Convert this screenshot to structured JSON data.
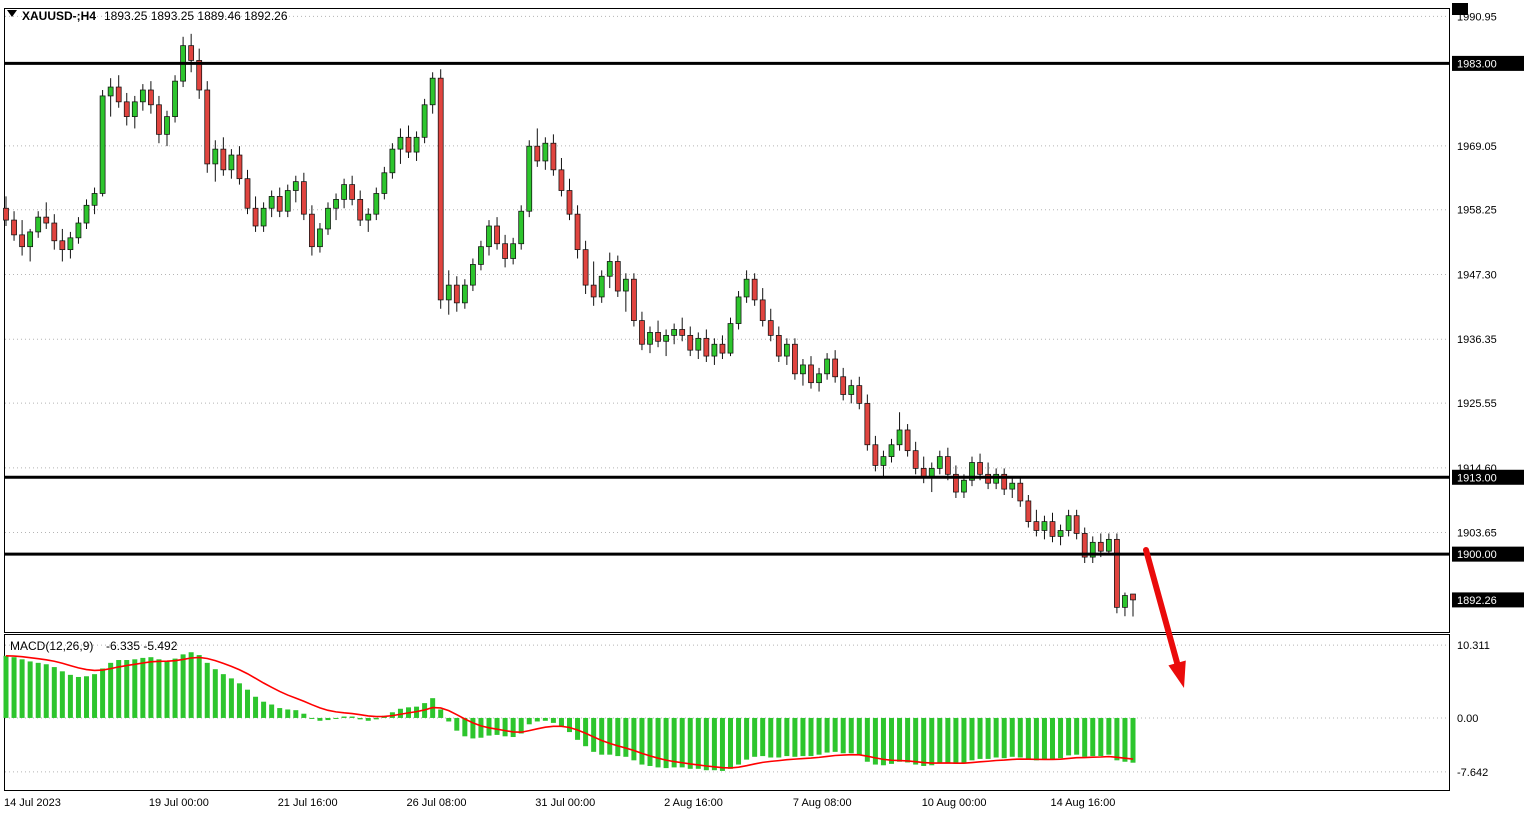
{
  "header": {
    "symbol": "XAUUSD-;H4",
    "ohlc": "1893.25 1893.25 1889.46 1892.26"
  },
  "indicator": {
    "name": "MACD(12,26,9)",
    "values": "-6.335 -5.492"
  },
  "colors": {
    "background": "#ffffff",
    "up": "#2dc52d",
    "down": "#e0443f",
    "wick": "#111111",
    "grid": "#b5b5b5",
    "level_line": "#000000",
    "badge_bg": "#000000",
    "badge_text": "#ffffff",
    "histogram": "#2dc52d",
    "signal": "#ff0000",
    "arrow": "#ea0b0b",
    "text": "#000000"
  },
  "chart_data": {
    "type": "candlestick",
    "symbol": "XAUUSD-",
    "timeframe": "H4",
    "title": "XAUUSD-;H4 1893.25 1893.25 1889.46 1892.26",
    "ylim": [
      1887.0,
      1992.2
    ],
    "price_ticks": [
      {
        "value": 1990.95,
        "label": "1990.95"
      },
      {
        "value": 1969.05,
        "label": "1969.05"
      },
      {
        "value": 1958.25,
        "label": "1958.25"
      },
      {
        "value": 1947.3,
        "label": "1947.30"
      },
      {
        "value": 1936.35,
        "label": "1936.35"
      },
      {
        "value": 1925.55,
        "label": "1925.55"
      },
      {
        "value": 1914.6,
        "label": "1914.60"
      },
      {
        "value": 1903.65,
        "label": "1903.65"
      }
    ],
    "levels": [
      {
        "price": 1983.0,
        "label": "1983.00"
      },
      {
        "price": 1913.0,
        "label": "1913.00"
      },
      {
        "price": 1900.0,
        "label": "1900.00"
      }
    ],
    "current_price": {
      "value": 1892.26,
      "label": "1892.26"
    },
    "date_ticks": [
      {
        "bar": 0,
        "label": "14 Jul 2023"
      },
      {
        "bar": 18,
        "label": "19 Jul 00:00"
      },
      {
        "bar": 34,
        "label": "21 Jul 16:00"
      },
      {
        "bar": 50,
        "label": "26 Jul 08:00"
      },
      {
        "bar": 66,
        "label": "31 Jul 00:00"
      },
      {
        "bar": 82,
        "label": "2 Aug 16:00"
      },
      {
        "bar": 98,
        "label": "7 Aug 08:00"
      },
      {
        "bar": 114,
        "label": "10 Aug 00:00"
      },
      {
        "bar": 130,
        "label": "14 Aug 16:00"
      }
    ],
    "candles": [
      [
        1958.5,
        1960.5,
        1955.5,
        1956.5
      ],
      [
        1956.5,
        1958,
        1953,
        1954
      ],
      [
        1954,
        1956.5,
        1950.5,
        1952
      ],
      [
        1952,
        1955,
        1949.5,
        1954.5
      ],
      [
        1954.5,
        1958,
        1953.5,
        1957
      ],
      [
        1957,
        1959.5,
        1955,
        1956
      ],
      [
        1956,
        1957.5,
        1951.5,
        1953
      ],
      [
        1953,
        1955,
        1949.5,
        1951.5
      ],
      [
        1951.5,
        1954.5,
        1950,
        1953.5
      ],
      [
        1953.5,
        1957,
        1952.5,
        1956
      ],
      [
        1956,
        1960,
        1955,
        1959
      ],
      [
        1959,
        1962,
        1957.5,
        1961
      ],
      [
        1961,
        1978.5,
        1960.5,
        1977.5
      ],
      [
        1977.5,
        1980.5,
        1974,
        1979
      ],
      [
        1979,
        1981,
        1975.5,
        1976.5
      ],
      [
        1976.5,
        1978,
        1972.5,
        1974
      ],
      [
        1974,
        1977.5,
        1972,
        1976.5
      ],
      [
        1976.5,
        1979.5,
        1975,
        1978.5
      ],
      [
        1978.5,
        1980,
        1974.5,
        1976
      ],
      [
        1976,
        1977.5,
        1969.5,
        1971
      ],
      [
        1971,
        1975,
        1969,
        1974
      ],
      [
        1974,
        1981,
        1973,
        1980
      ],
      [
        1980,
        1987.5,
        1979,
        1986
      ],
      [
        1986,
        1988,
        1981.5,
        1983.5
      ],
      [
        1983.5,
        1985.5,
        1977,
        1978.5
      ],
      [
        1978.5,
        1980,
        1964.5,
        1966
      ],
      [
        1966,
        1970,
        1963,
        1968.5
      ],
      [
        1968.5,
        1970.5,
        1964,
        1965
      ],
      [
        1965,
        1968.5,
        1963.5,
        1967.5
      ],
      [
        1967.5,
        1969,
        1962.5,
        1963.5
      ],
      [
        1963.5,
        1965,
        1957.5,
        1958.5
      ],
      [
        1958.5,
        1960.5,
        1954.5,
        1955.5
      ],
      [
        1955.5,
        1959.5,
        1954.5,
        1958.5
      ],
      [
        1958.5,
        1961.5,
        1957,
        1960.5
      ],
      [
        1960.5,
        1962,
        1957,
        1958
      ],
      [
        1958,
        1962.5,
        1957,
        1961.5
      ],
      [
        1961.5,
        1964,
        1959.5,
        1963
      ],
      [
        1963,
        1964.5,
        1956.5,
        1957.5
      ],
      [
        1957.5,
        1959,
        1950.5,
        1952
      ],
      [
        1952,
        1956,
        1951,
        1955
      ],
      [
        1955,
        1959.5,
        1954,
        1958.5
      ],
      [
        1958.5,
        1961,
        1956.5,
        1960
      ],
      [
        1960,
        1963.5,
        1958.5,
        1962.5
      ],
      [
        1962.5,
        1964,
        1959,
        1960
      ],
      [
        1960,
        1961.5,
        1955.5,
        1956.5
      ],
      [
        1956.5,
        1958.5,
        1954.5,
        1957.5
      ],
      [
        1957.5,
        1962,
        1956.5,
        1961
      ],
      [
        1961,
        1965.5,
        1960,
        1964.5
      ],
      [
        1964.5,
        1969.5,
        1963.5,
        1968.5
      ],
      [
        1968.5,
        1972,
        1966,
        1970.5
      ],
      [
        1970.5,
        1972.5,
        1967,
        1968
      ],
      [
        1968,
        1971.5,
        1966.5,
        1970.5
      ],
      [
        1970.5,
        1977,
        1969.5,
        1976
      ],
      [
        1976,
        1981.5,
        1974.5,
        1980.5
      ],
      [
        1980.5,
        1982,
        1941.5,
        1943
      ],
      [
        1943,
        1948,
        1940.5,
        1945.5
      ],
      [
        1945.5,
        1947,
        1941,
        1942.5
      ],
      [
        1942.5,
        1946.5,
        1941.5,
        1945.5
      ],
      [
        1945.5,
        1950,
        1944.5,
        1949
      ],
      [
        1949,
        1953,
        1948,
        1952
      ],
      [
        1952,
        1956.5,
        1950.5,
        1955.5
      ],
      [
        1955.5,
        1957,
        1951.5,
        1952.5
      ],
      [
        1952.5,
        1954,
        1948.5,
        1950
      ],
      [
        1950,
        1953.5,
        1949,
        1952.5
      ],
      [
        1952.5,
        1959,
        1951.5,
        1958
      ],
      [
        1958,
        1970,
        1957,
        1969
      ],
      [
        1969,
        1972,
        1965.5,
        1966.5
      ],
      [
        1966.5,
        1970.5,
        1965,
        1969.5
      ],
      [
        1969.5,
        1971,
        1964,
        1965
      ],
      [
        1965,
        1967,
        1960.5,
        1961.5
      ],
      [
        1961.5,
        1963.5,
        1956.5,
        1957.5
      ],
      [
        1957.5,
        1959,
        1950,
        1951.5
      ],
      [
        1951.5,
        1953,
        1944,
        1945.5
      ],
      [
        1945.5,
        1949.5,
        1942,
        1943.5
      ],
      [
        1943.5,
        1948,
        1942.5,
        1947
      ],
      [
        1947,
        1951,
        1945,
        1949.5
      ],
      [
        1949.5,
        1950.5,
        1943.5,
        1944.5
      ],
      [
        1944.5,
        1947.5,
        1941,
        1946.5
      ],
      [
        1946.5,
        1947.5,
        1938.5,
        1939.5
      ],
      [
        1939.5,
        1941,
        1934.5,
        1935.5
      ],
      [
        1935.5,
        1938.5,
        1934,
        1937.5
      ],
      [
        1937.5,
        1939.5,
        1935,
        1936
      ],
      [
        1936,
        1938,
        1933.5,
        1937
      ],
      [
        1937,
        1939,
        1935.5,
        1938
      ],
      [
        1938,
        1940,
        1936,
        1937
      ],
      [
        1937,
        1938.5,
        1933.5,
        1934.5
      ],
      [
        1934.5,
        1937.5,
        1933,
        1936.5
      ],
      [
        1936.5,
        1938,
        1932.5,
        1933.5
      ],
      [
        1933.5,
        1936.5,
        1932,
        1935.5
      ],
      [
        1935.5,
        1937,
        1933,
        1934
      ],
      [
        1934,
        1940,
        1933.5,
        1939
      ],
      [
        1939,
        1944.5,
        1938,
        1943.5
      ],
      [
        1943.5,
        1948,
        1942.5,
        1946.5
      ],
      [
        1946.5,
        1947.5,
        1942,
        1943
      ],
      [
        1943,
        1945,
        1938.5,
        1939.5
      ],
      [
        1939.5,
        1941.5,
        1936,
        1937
      ],
      [
        1937,
        1938.5,
        1932.5,
        1933.5
      ],
      [
        1933.5,
        1936.5,
        1932,
        1935.5
      ],
      [
        1935.5,
        1936.5,
        1929.5,
        1930.5
      ],
      [
        1930.5,
        1933,
        1928.5,
        1932
      ],
      [
        1932,
        1933.5,
        1928,
        1929
      ],
      [
        1929,
        1931.5,
        1927.5,
        1930.5
      ],
      [
        1930.5,
        1934,
        1929.5,
        1933
      ],
      [
        1933,
        1934.5,
        1929,
        1930
      ],
      [
        1930,
        1931.5,
        1926,
        1927
      ],
      [
        1927,
        1929.5,
        1925.5,
        1928.5
      ],
      [
        1928.5,
        1930,
        1924.5,
        1925.5
      ],
      [
        1925.5,
        1927,
        1917.5,
        1918.5
      ],
      [
        1918.5,
        1920,
        1914,
        1915
      ],
      [
        1915,
        1917.5,
        1913,
        1916.5
      ],
      [
        1916.5,
        1919.5,
        1915.5,
        1918.5
      ],
      [
        1918.5,
        1924,
        1917.5,
        1921
      ],
      [
        1921,
        1922,
        1916.5,
        1917.5
      ],
      [
        1917.5,
        1919,
        1913.5,
        1914.5
      ],
      [
        1914.5,
        1916.5,
        1912,
        1913
      ],
      [
        1913,
        1915.5,
        1910.5,
        1914.5
      ],
      [
        1914.5,
        1917.5,
        1913.5,
        1916.5
      ],
      [
        1916.5,
        1918,
        1912.5,
        1913.5
      ],
      [
        1913.5,
        1915,
        1909.5,
        1910.5
      ],
      [
        1910.5,
        1913.5,
        1909.5,
        1912.5
      ],
      [
        1912.5,
        1916.5,
        1911.5,
        1915.5
      ],
      [
        1915.5,
        1917,
        1912.5,
        1913.5
      ],
      [
        1913.5,
        1915.5,
        1911,
        1912
      ],
      [
        1912,
        1914.5,
        1911,
        1913.5
      ],
      [
        1913.5,
        1914.5,
        1910,
        1911
      ],
      [
        1911,
        1913,
        1909.5,
        1912
      ],
      [
        1912,
        1913,
        1908,
        1909
      ],
      [
        1909,
        1910,
        1904.5,
        1905.5
      ],
      [
        1905.5,
        1907.5,
        1903,
        1904
      ],
      [
        1904,
        1906.5,
        1902.5,
        1905.5
      ],
      [
        1905.5,
        1907,
        1902,
        1903
      ],
      [
        1903,
        1905,
        1901.5,
        1904
      ],
      [
        1904,
        1907.5,
        1903,
        1906.5
      ],
      [
        1906.5,
        1907.5,
        1902.5,
        1903.5
      ],
      [
        1903.5,
        1904.5,
        1898.5,
        1899.5
      ],
      [
        1899.5,
        1903,
        1898.5,
        1902
      ],
      [
        1902,
        1903.5,
        1899.5,
        1900.5
      ],
      [
        1900.5,
        1903.5,
        1900,
        1902.5
      ],
      [
        1902.5,
        1903.5,
        1890,
        1891
      ],
      [
        1891,
        1893.5,
        1889.5,
        1893
      ],
      [
        1893.25,
        1893.25,
        1889.46,
        1892.26
      ]
    ],
    "macd": {
      "ylim": [
        -10.2,
        11.6
      ],
      "ticks": [
        {
          "value": 10.311,
          "label": "10.311"
        },
        {
          "value": 0,
          "label": "0.00"
        },
        {
          "value": -7.642,
          "label": "-7.642"
        }
      ],
      "signal_period": 9,
      "main_value": -6.335,
      "signal_value": -5.492,
      "histogram": [
        8.8,
        8.6,
        8.3,
        8,
        7.8,
        7.6,
        7.2,
        6.6,
        6.1,
        5.8,
        5.9,
        6.2,
        7,
        7.8,
        8.2,
        8.2,
        8.3,
        8.5,
        8.6,
        8.3,
        8.1,
        8.4,
        9,
        9.3,
        8.9,
        7.8,
        6.9,
        6.2,
        5.6,
        4.9,
        4,
        3,
        2.3,
        1.9,
        1.4,
        1.2,
        1.1,
        0.6,
        -0.1,
        -0.4,
        -0.3,
        0,
        0.2,
        0.2,
        -0.2,
        -0.4,
        -0.2,
        0.3,
        0.8,
        1.3,
        1.5,
        1.6,
        2.1,
        2.8,
        1.2,
        -0.5,
        -1.8,
        -2.6,
        -2.9,
        -2.8,
        -2.5,
        -2.4,
        -2.6,
        -2.7,
        -2.2,
        -0.9,
        -0.5,
        -0.4,
        -0.7,
        -1.2,
        -2,
        -3.1,
        -4,
        -4.8,
        -5.2,
        -5.2,
        -5.4,
        -5.5,
        -6,
        -6.6,
        -6.8,
        -7,
        -7.1,
        -7,
        -7,
        -7.2,
        -7.2,
        -7.4,
        -7.4,
        -7.5,
        -7.2,
        -6.6,
        -5.9,
        -5.5,
        -5.4,
        -5.6,
        -5.6,
        -5.4,
        -5.5,
        -5.4,
        -5.4,
        -5.2,
        -4.9,
        -4.8,
        -5,
        -5,
        -5.3,
        -6.2,
        -6.6,
        -6.7,
        -6.5,
        -6.2,
        -6.3,
        -6.6,
        -6.8,
        -6.7,
        -6.4,
        -6.3,
        -6.5,
        -6.4,
        -6,
        -5.8,
        -5.8,
        -5.6,
        -5.7,
        -5.5,
        -5.6,
        -5.9,
        -6,
        -5.9,
        -5.9,
        -5.7,
        -5.3,
        -5.2,
        -5.5,
        -5.4,
        -5.4,
        -5.2,
        -6,
        -6.2,
        -6.335
      ]
    },
    "annotations": [
      {
        "type": "arrow",
        "from": [
          1146,
          550
        ],
        "to": [
          1184,
          688
        ]
      }
    ]
  }
}
